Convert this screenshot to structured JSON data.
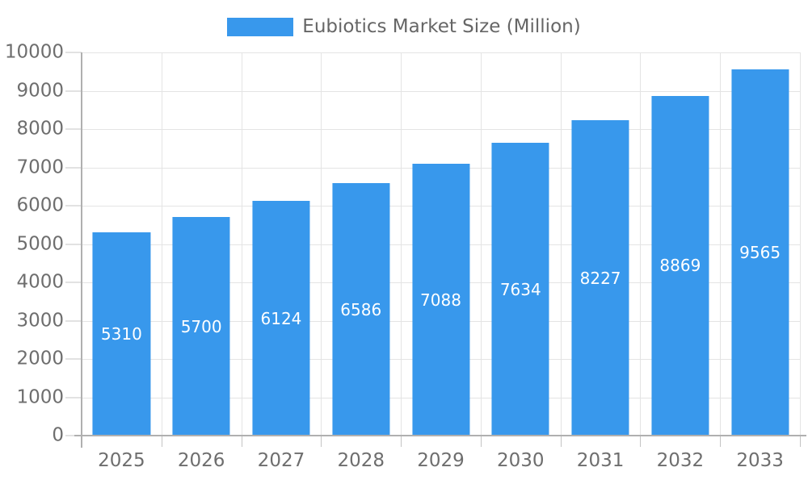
{
  "chart_data": {
    "type": "bar",
    "title": "Eubiotics Market Size (Million)",
    "legend": {
      "label": "Eubiotics Market Size (Million)",
      "position": "top-center"
    },
    "categories": [
      "2025",
      "2026",
      "2027",
      "2028",
      "2029",
      "2030",
      "2031",
      "2032",
      "2033"
    ],
    "series": [
      {
        "name": "Eubiotics Market Size (Million)",
        "values": [
          5310,
          5700,
          6124,
          6586,
          7088,
          7634,
          8227,
          8869,
          9565
        ]
      }
    ],
    "bar_labels": [
      "5310",
      "5700",
      "6124",
      "6586",
      "7088",
      "7634",
      "8227",
      "8869",
      "9565"
    ],
    "xlabel": "",
    "ylabel": "",
    "ylim": [
      0,
      10000
    ],
    "yticks": [
      0,
      1000,
      2000,
      3000,
      4000,
      5000,
      6000,
      7000,
      8000,
      9000,
      10000
    ],
    "grid": true,
    "colors": {
      "bar": "#3898EC",
      "axis_line": "#b0b0b0",
      "tick": "#c4c4c4",
      "gridline": "#e4e4e4",
      "axis_text": "#6e6e6e",
      "legend_text": "#666666",
      "bar_label_text": "#ffffff",
      "background": "#ffffff"
    }
  }
}
